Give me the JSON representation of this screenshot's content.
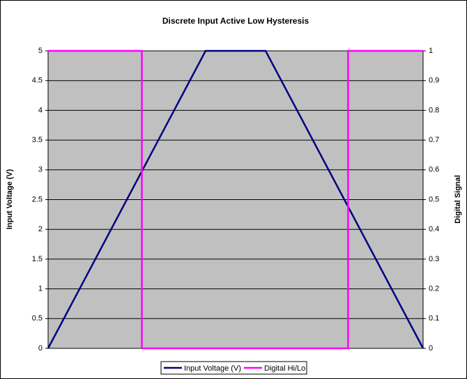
{
  "chart_data": {
    "type": "line",
    "title": "Discrete Input Active Low Hysteresis",
    "y_label": "Input Voltage (V)",
    "y2_label": "Digital Signal",
    "xlim": [
      0,
      100
    ],
    "ylim": [
      0,
      5
    ],
    "yticks": [
      0,
      0.5,
      1,
      1.5,
      2,
      2.5,
      3,
      3.5,
      4,
      4.5,
      5
    ],
    "y2lim": [
      0,
      1
    ],
    "y2ticks": [
      0,
      0.1,
      0.2,
      0.3,
      0.4,
      0.5,
      0.6,
      0.7,
      0.8,
      0.9,
      1
    ],
    "grid": true,
    "legend": "bottom",
    "series": [
      {
        "name": "Input Voltage (V)",
        "color": "#000080",
        "x": [
          0,
          42,
          58,
          100
        ],
        "values": [
          0,
          5,
          5,
          0
        ]
      },
      {
        "name": "Digital Hi/Lo",
        "color": "#ff00ff",
        "axis": "y2",
        "x": [
          0,
          25,
          25,
          80,
          80,
          100
        ],
        "values": [
          1,
          1,
          0,
          0,
          1,
          1
        ]
      }
    ]
  }
}
